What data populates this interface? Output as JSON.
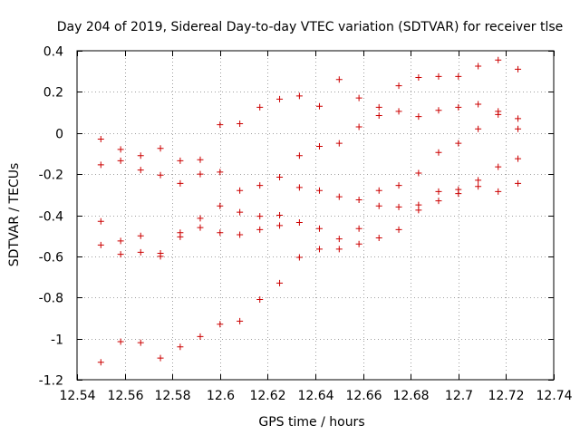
{
  "chart_data": {
    "type": "scatter",
    "title": "Day 204 of 2019, Sidereal Day-to-day VTEC variation (SDTVAR) for receiver tlse",
    "xlabel": "GPS time / hours",
    "ylabel": "SDTVAR / TECUs",
    "xlim": [
      12.54,
      12.74
    ],
    "ylim": [
      -1.2,
      0.4
    ],
    "xticks": [
      12.54,
      12.56,
      12.58,
      12.6,
      12.62,
      12.64,
      12.66,
      12.68,
      12.7,
      12.72,
      12.74
    ],
    "xtick_labels": [
      "12.54",
      "12.56",
      "12.58",
      "12.6",
      "12.62",
      "12.64",
      "12.66",
      "12.68",
      "12.7",
      "12.72",
      "12.74"
    ],
    "yticks": [
      0.4,
      0.2,
      0,
      -0.2,
      -0.4,
      -0.6,
      -0.8,
      -1,
      -1.2
    ],
    "ytick_labels": [
      "0.4",
      "0.2",
      "0",
      "-0.2",
      "-0.4",
      "-0.6",
      "-0.8",
      "-1",
      "-1.2"
    ],
    "grid": true,
    "marker": "+",
    "marker_color": "#cc0000",
    "points": [
      [
        12.55,
        -0.03
      ],
      [
        12.55,
        -0.155
      ],
      [
        12.55,
        -0.43
      ],
      [
        12.55,
        -0.545
      ],
      [
        12.55,
        -1.115
      ],
      [
        12.5583,
        -0.08
      ],
      [
        12.5583,
        -0.135
      ],
      [
        12.5583,
        -0.525
      ],
      [
        12.5583,
        -0.59
      ],
      [
        12.5583,
        -1.015
      ],
      [
        12.5667,
        -0.11
      ],
      [
        12.5667,
        -0.18
      ],
      [
        12.5667,
        -0.5
      ],
      [
        12.5667,
        -0.58
      ],
      [
        12.5667,
        -1.02
      ],
      [
        12.575,
        -0.075
      ],
      [
        12.575,
        -0.205
      ],
      [
        12.575,
        -0.585
      ],
      [
        12.575,
        -0.6
      ],
      [
        12.575,
        -1.095
      ],
      [
        12.5833,
        -0.135
      ],
      [
        12.5833,
        -0.245
      ],
      [
        12.5833,
        -0.485
      ],
      [
        12.5833,
        -0.505
      ],
      [
        12.5833,
        -1.04
      ],
      [
        12.5917,
        -0.13
      ],
      [
        12.5917,
        -0.2
      ],
      [
        12.5917,
        -0.415
      ],
      [
        12.5917,
        -0.46
      ],
      [
        12.5917,
        -0.99
      ],
      [
        12.6,
        0.04
      ],
      [
        12.6,
        -0.19
      ],
      [
        12.6,
        -0.355
      ],
      [
        12.6,
        -0.485
      ],
      [
        12.6,
        -0.93
      ],
      [
        12.6083,
        0.045
      ],
      [
        12.6083,
        -0.28
      ],
      [
        12.6083,
        -0.385
      ],
      [
        12.6083,
        -0.495
      ],
      [
        12.6083,
        -0.915
      ],
      [
        12.6167,
        0.125
      ],
      [
        12.6167,
        -0.255
      ],
      [
        12.6167,
        -0.405
      ],
      [
        12.6167,
        -0.47
      ],
      [
        12.6167,
        -0.81
      ],
      [
        12.625,
        0.165
      ],
      [
        12.625,
        -0.215
      ],
      [
        12.625,
        -0.4
      ],
      [
        12.625,
        -0.45
      ],
      [
        12.625,
        -0.73
      ],
      [
        12.6333,
        0.18
      ],
      [
        12.6333,
        -0.11
      ],
      [
        12.6333,
        -0.265
      ],
      [
        12.6333,
        -0.435
      ],
      [
        12.6333,
        -0.605
      ],
      [
        12.6417,
        0.13
      ],
      [
        12.6417,
        -0.065
      ],
      [
        12.6417,
        -0.28
      ],
      [
        12.6417,
        -0.465
      ],
      [
        12.6417,
        -0.565
      ],
      [
        12.65,
        0.26
      ],
      [
        12.65,
        -0.05
      ],
      [
        12.65,
        -0.31
      ],
      [
        12.65,
        -0.515
      ],
      [
        12.65,
        -0.565
      ],
      [
        12.6583,
        0.17
      ],
      [
        12.6583,
        0.03
      ],
      [
        12.6583,
        -0.325
      ],
      [
        12.6583,
        -0.465
      ],
      [
        12.6583,
        -0.54
      ],
      [
        12.6667,
        0.125
      ],
      [
        12.6667,
        0.085
      ],
      [
        12.6667,
        -0.28
      ],
      [
        12.6667,
        -0.355
      ],
      [
        12.6667,
        -0.51
      ],
      [
        12.675,
        0.23
      ],
      [
        12.675,
        0.105
      ],
      [
        12.675,
        -0.255
      ],
      [
        12.675,
        -0.36
      ],
      [
        12.675,
        -0.47
      ],
      [
        12.6833,
        0.27
      ],
      [
        12.6833,
        0.08
      ],
      [
        12.6833,
        -0.195
      ],
      [
        12.6833,
        -0.35
      ],
      [
        12.6833,
        -0.375
      ],
      [
        12.6917,
        0.275
      ],
      [
        12.6917,
        0.11
      ],
      [
        12.6917,
        -0.095
      ],
      [
        12.6917,
        -0.285
      ],
      [
        12.6917,
        -0.33
      ],
      [
        12.7,
        0.275
      ],
      [
        12.7,
        0.125
      ],
      [
        12.7,
        -0.05
      ],
      [
        12.7,
        -0.275
      ],
      [
        12.7,
        -0.295
      ],
      [
        12.7083,
        0.325
      ],
      [
        12.7083,
        0.14
      ],
      [
        12.7083,
        0.02
      ],
      [
        12.7083,
        -0.23
      ],
      [
        12.7083,
        -0.26
      ],
      [
        12.7167,
        0.355
      ],
      [
        12.7167,
        0.105
      ],
      [
        12.7167,
        0.09
      ],
      [
        12.7167,
        -0.165
      ],
      [
        12.7167,
        -0.285
      ],
      [
        12.725,
        0.31
      ],
      [
        12.725,
        0.07
      ],
      [
        12.725,
        0.02
      ],
      [
        12.725,
        -0.125
      ],
      [
        12.725,
        -0.245
      ]
    ]
  }
}
